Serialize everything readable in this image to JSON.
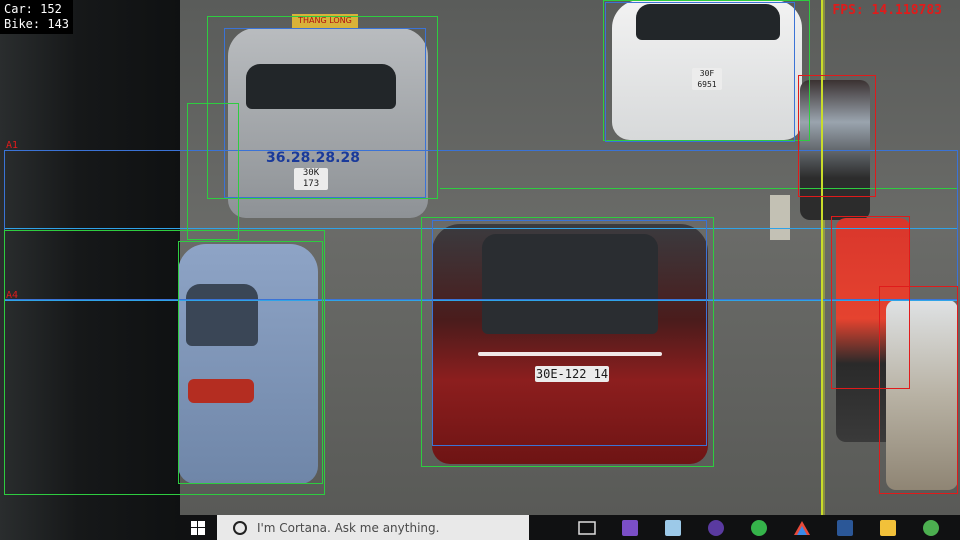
{
  "overlay": {
    "car_count_text": "Car: 152",
    "bike_count_text": "Bike: 143",
    "fps_text": "FPS: 14.118783",
    "line_labels": [
      "A1",
      "A4"
    ]
  },
  "plates": {
    "taxi_number": "36.28.28.28",
    "taxi_plate": "30K 173",
    "white_car_plate": "30F 6951",
    "red_car_plate": "30E-122 14"
  },
  "taxi_sign": "THANG LONG",
  "taskbar": {
    "search_placeholder": "I'm Cortana. Ask me anything.",
    "icons": [
      "task-view-icon",
      "visual-studio-icon",
      "box-app-icon",
      "media-app-icon",
      "cortana-green-icon",
      "triangle-app-icon",
      "word-icon",
      "file-explorer-icon",
      "chrome-icon"
    ]
  },
  "colors": {
    "car_box": "#2ecc40",
    "bike_box": "#e01b1b",
    "counting_line": "#2fa3e8",
    "fps_text": "#e01b1b"
  }
}
